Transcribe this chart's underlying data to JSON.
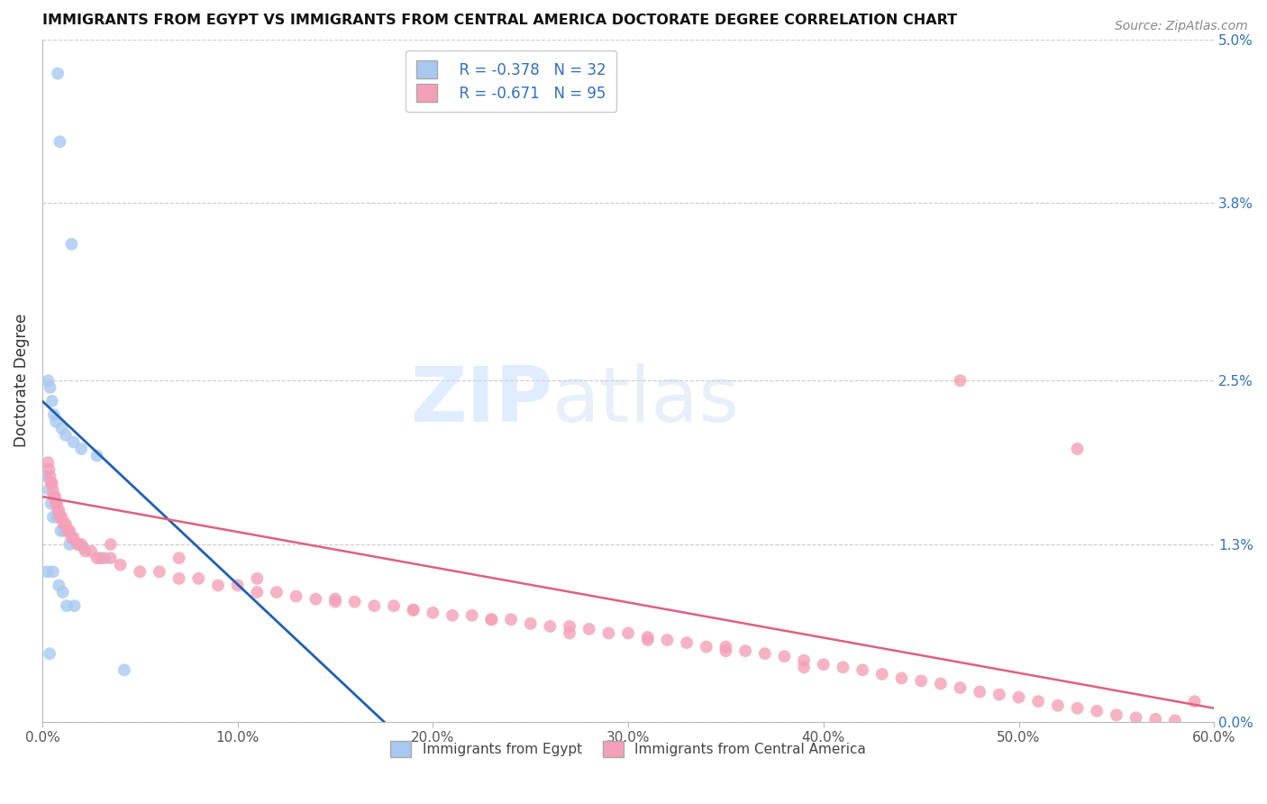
{
  "title": "IMMIGRANTS FROM EGYPT VS IMMIGRANTS FROM CENTRAL AMERICA DOCTORATE DEGREE CORRELATION CHART",
  "source": "Source: ZipAtlas.com",
  "xlabel_ticks": [
    "0.0%",
    "10.0%",
    "20.0%",
    "30.0%",
    "40.0%",
    "50.0%",
    "60.0%"
  ],
  "xlabel_vals": [
    0.0,
    10.0,
    20.0,
    30.0,
    40.0,
    50.0,
    60.0
  ],
  "ylabel": "Doctorate Degree",
  "ylabel_right_ticks": [
    "5.0%",
    "3.8%",
    "2.5%",
    "1.3%",
    "0.0%"
  ],
  "ylabel_right_vals": [
    5.0,
    3.8,
    2.5,
    1.3,
    0.0
  ],
  "xlim": [
    0.0,
    60.0
  ],
  "ylim": [
    0.0,
    5.0
  ],
  "egypt_color": "#A8C8F0",
  "central_america_color": "#F4A0B8",
  "egypt_line_color": "#2060B0",
  "central_america_line_color": "#E06080",
  "egypt_R": -0.378,
  "egypt_N": 32,
  "central_america_R": -0.671,
  "central_america_N": 95,
  "legend_egypt_label": "Immigrants from Egypt",
  "legend_ca_label": "Immigrants from Central America",
  "egypt_x": [
    0.8,
    0.9,
    1.5,
    0.3,
    0.4,
    0.5,
    0.6,
    0.7,
    1.0,
    1.2,
    1.6,
    2.0,
    2.8,
    0.2,
    0.35,
    0.45,
    0.55,
    0.75,
    0.95,
    1.1,
    1.4,
    1.9,
    2.1,
    3.2,
    0.25,
    0.55,
    0.85,
    1.05,
    1.25,
    1.65,
    0.38,
    4.2
  ],
  "egypt_y": [
    4.75,
    4.25,
    3.5,
    2.5,
    2.45,
    2.35,
    2.25,
    2.2,
    2.15,
    2.1,
    2.05,
    2.0,
    1.95,
    1.8,
    1.7,
    1.6,
    1.5,
    1.5,
    1.4,
    1.4,
    1.3,
    1.3,
    1.28,
    1.2,
    1.1,
    1.1,
    1.0,
    0.95,
    0.85,
    0.85,
    0.5,
    0.38
  ],
  "ca_x": [
    0.3,
    0.35,
    0.4,
    0.45,
    0.5,
    0.55,
    0.6,
    0.65,
    0.7,
    0.75,
    0.8,
    0.85,
    0.9,
    1.0,
    1.1,
    1.2,
    1.3,
    1.4,
    1.5,
    1.6,
    1.8,
    2.0,
    2.2,
    2.5,
    2.8,
    3.0,
    3.5,
    4.0,
    5.0,
    6.0,
    7.0,
    8.0,
    9.0,
    10.0,
    11.0,
    12.0,
    13.0,
    14.0,
    15.0,
    16.0,
    17.0,
    18.0,
    19.0,
    20.0,
    21.0,
    22.0,
    23.0,
    24.0,
    25.0,
    26.0,
    27.0,
    28.0,
    29.0,
    30.0,
    31.0,
    32.0,
    33.0,
    34.0,
    35.0,
    36.0,
    37.0,
    38.0,
    39.0,
    40.0,
    41.0,
    42.0,
    43.0,
    44.0,
    45.0,
    46.0,
    47.0,
    48.0,
    49.0,
    50.0,
    51.0,
    52.0,
    53.0,
    54.0,
    55.0,
    56.0,
    57.0,
    58.0,
    47.0,
    53.0,
    59.0,
    3.5,
    7.0,
    11.0,
    15.0,
    19.0,
    23.0,
    27.0,
    31.0,
    35.0,
    39.0
  ],
  "ca_y": [
    1.9,
    1.85,
    1.8,
    1.75,
    1.75,
    1.7,
    1.65,
    1.65,
    1.6,
    1.6,
    1.55,
    1.55,
    1.5,
    1.5,
    1.45,
    1.45,
    1.4,
    1.4,
    1.35,
    1.35,
    1.3,
    1.3,
    1.25,
    1.25,
    1.2,
    1.2,
    1.2,
    1.15,
    1.1,
    1.1,
    1.05,
    1.05,
    1.0,
    1.0,
    0.95,
    0.95,
    0.92,
    0.9,
    0.9,
    0.88,
    0.85,
    0.85,
    0.82,
    0.8,
    0.78,
    0.78,
    0.75,
    0.75,
    0.72,
    0.7,
    0.7,
    0.68,
    0.65,
    0.65,
    0.62,
    0.6,
    0.58,
    0.55,
    0.55,
    0.52,
    0.5,
    0.48,
    0.45,
    0.42,
    0.4,
    0.38,
    0.35,
    0.32,
    0.3,
    0.28,
    0.25,
    0.22,
    0.2,
    0.18,
    0.15,
    0.12,
    0.1,
    0.08,
    0.05,
    0.03,
    0.02,
    0.01,
    2.5,
    2.0,
    0.15,
    1.3,
    1.2,
    1.05,
    0.88,
    0.82,
    0.75,
    0.65,
    0.6,
    0.52,
    0.4
  ]
}
